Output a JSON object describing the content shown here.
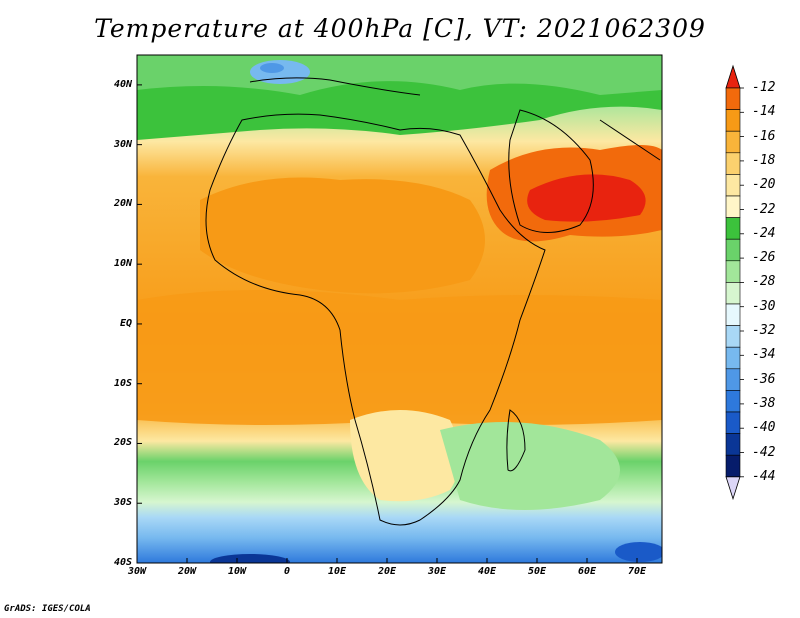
{
  "title": "Temperature at 400hPa [C], VT: 2021062309",
  "footer": "GrADS: IGES/COLA",
  "map": {
    "lon_range": [
      -30,
      75
    ],
    "lat_range": [
      -40,
      45
    ],
    "lat_labels": [
      "40N",
      "30N",
      "20N",
      "10N",
      "EQ",
      "10S",
      "20S",
      "30S",
      "40S"
    ],
    "lon_labels": [
      "30W",
      "20W",
      "10W",
      "0",
      "10E",
      "20E",
      "30E",
      "40E",
      "50E",
      "60E",
      "70E"
    ]
  },
  "colorbar": {
    "levels": [
      "-12",
      "-14",
      "-16",
      "-18",
      "-20",
      "-22",
      "-24",
      "-26",
      "-28",
      "-30",
      "-32",
      "-34",
      "-36",
      "-38",
      "-40",
      "-42",
      "-44"
    ],
    "colors": [
      "#e8230f",
      "#f26a0c",
      "#f79a16",
      "#f9b43a",
      "#fbd16e",
      "#fde8a2",
      "#fff6c8",
      "#3cc23c",
      "#6ad26a",
      "#a2e69a",
      "#d6f6cf",
      "#e6f8fd",
      "#a9d8f6",
      "#77b9ef",
      "#4f98e6",
      "#2e79dc",
      "#1a5ac8",
      "#0a3696",
      "#061c6b",
      "#dcd6f7"
    ]
  }
}
